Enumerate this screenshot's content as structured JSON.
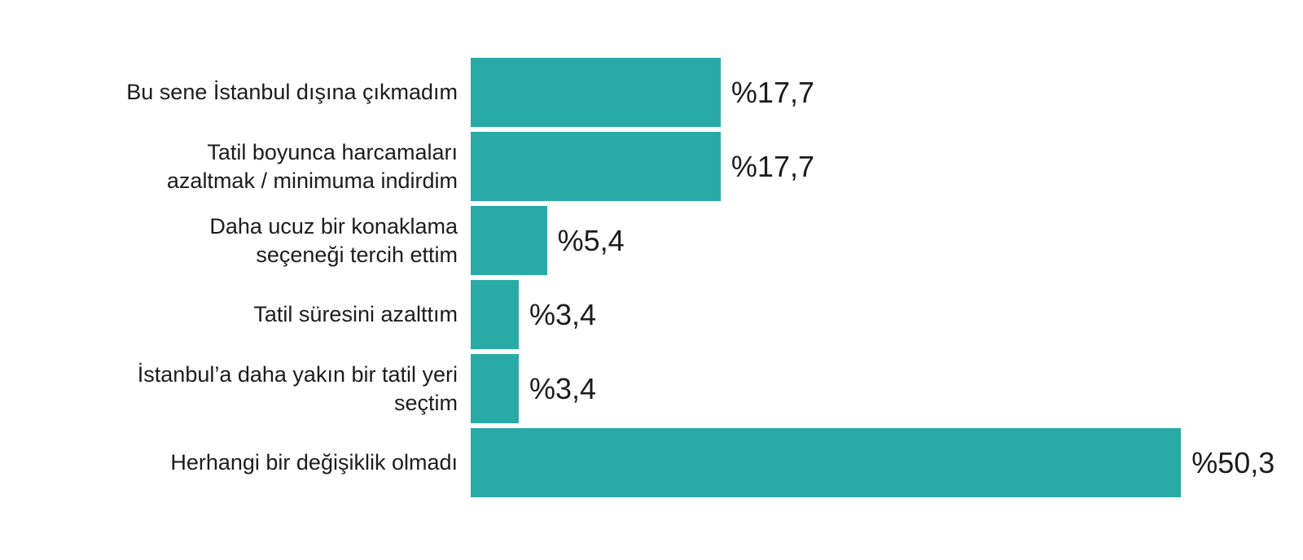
{
  "chart_data": {
    "type": "bar",
    "orientation": "horizontal",
    "title": "",
    "xlabel": "",
    "ylabel": "",
    "xlim": [
      0,
      50.3
    ],
    "grid": false,
    "legend": false,
    "bar_color": "#2AAAA6",
    "text_color": "#1c1c1c",
    "categories": [
      "Bu sene İstanbul dışına çıkmadım",
      "Tatil boyunca harcamaları azaltmak / minimuma indirdim",
      "Daha ucuz bir konaklama seçeneği tercih ettim",
      "Tatil süresini azalttım",
      "İstanbul’a daha yakın bir tatil yeri seçtim",
      "Herhangi bir değişiklik olmadı"
    ],
    "categories_wrapped": [
      "Bu sene İstanbul dışına çıkmadım",
      "Tatil boyunca harcamaları\nazaltmak / minimuma indirdim",
      "Daha ucuz bir konaklama\nseçeneği tercih ettim",
      "Tatil süresini azalttım",
      "İstanbul’a daha yakın bir tatil yeri\nseçtim",
      "Herhangi bir değişiklik olmadı"
    ],
    "values": [
      17.7,
      17.7,
      5.4,
      3.4,
      3.4,
      50.3
    ],
    "value_labels": [
      "%17,7",
      "%17,7",
      "%5,4",
      "%3,4",
      "%3,4",
      "%50,3"
    ]
  }
}
